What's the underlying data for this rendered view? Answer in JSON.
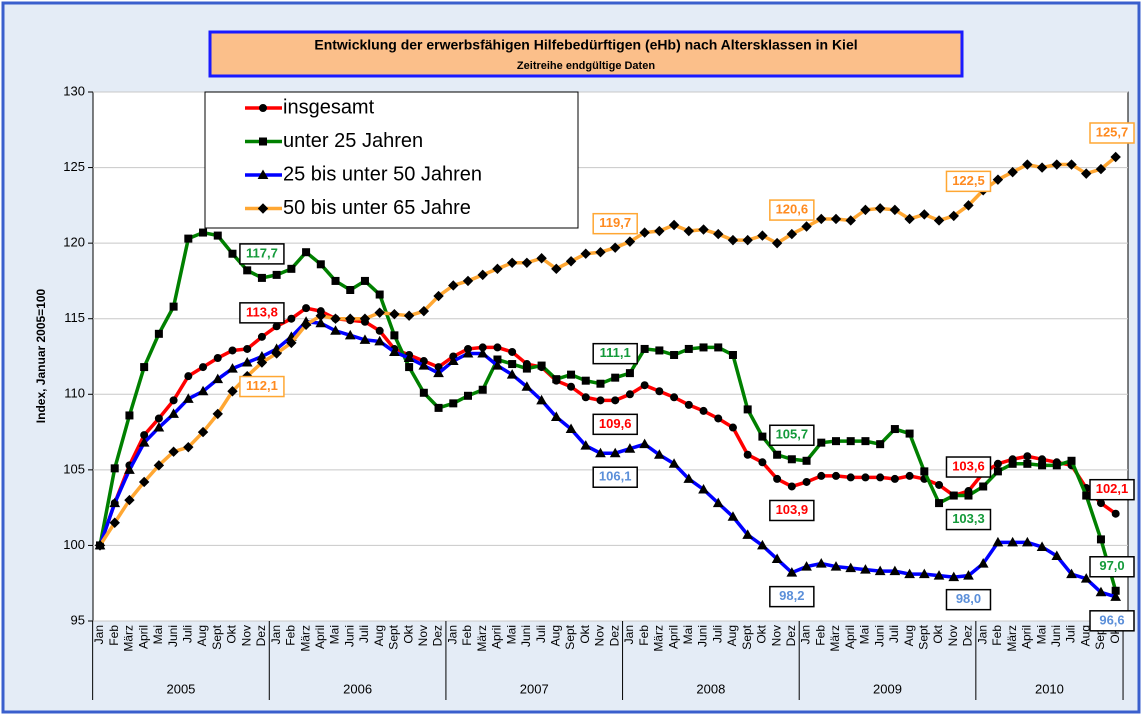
{
  "chart_data": {
    "type": "line",
    "title": "Entwicklung der erwerbsfähigen Hilfebedürftigen (eHb) nach Altersklassen  in Kiel",
    "subtitle": "Zeitreihe endgültige Daten",
    "y_label": "Index, Januar  2005=100",
    "categories": [
      "Jan",
      "Feb",
      "März",
      "April",
      "Mai",
      "Juni",
      "Juli",
      "Aug",
      "Sept",
      "Okt",
      "Nov",
      "Dez",
      "Jan",
      "Feb",
      "März",
      "April",
      "Mai",
      "Juni",
      "Juli",
      "Aug",
      "Sept",
      "Okt",
      "Nov",
      "Dez",
      "Jan",
      "Feb",
      "März",
      "April",
      "Mai",
      "Juni",
      "Juli",
      "Aug",
      "Sept",
      "Okt",
      "Nov",
      "Dez",
      "Jan",
      "Feb",
      "März",
      "April",
      "Mai",
      "Juni",
      "Juli",
      "Aug",
      "Sept",
      "Okt",
      "Nov",
      "Dez",
      "Jan",
      "Feb",
      "März",
      "April",
      "Mai",
      "Juni",
      "Juli",
      "Aug",
      "Sept",
      "Okt",
      "Nov",
      "Dez",
      "Jan",
      "Feb",
      "März",
      "April",
      "Mai",
      "Juni",
      "Juli",
      "Aug",
      "Sept",
      "Okt"
    ],
    "years": [
      {
        "label": "2005",
        "months": 12
      },
      {
        "label": "2006",
        "months": 12
      },
      {
        "label": "2007",
        "months": 12
      },
      {
        "label": "2008",
        "months": 12
      },
      {
        "label": "2009",
        "months": 12
      },
      {
        "label": "2010",
        "months": 10
      }
    ],
    "ylim": [
      95,
      130
    ],
    "yticks": [
      95,
      100,
      105,
      110,
      115,
      120,
      125,
      130
    ],
    "grid": true,
    "legend": "top-left",
    "series": [
      {
        "name": "insgesamt",
        "color": "#ff0000",
        "marker": "circle",
        "values": [
          100,
          102.8,
          105.3,
          107.3,
          108.4,
          109.6,
          111.2,
          111.8,
          112.4,
          112.9,
          113.0,
          113.8,
          114.5,
          115.0,
          115.7,
          115.5,
          115.0,
          114.9,
          114.8,
          114.2,
          113.0,
          112.6,
          112.2,
          111.8,
          112.5,
          113.0,
          113.1,
          113.1,
          112.8,
          112.0,
          111.8,
          110.9,
          110.5,
          109.8,
          109.6,
          109.6,
          110.0,
          110.6,
          110.2,
          109.8,
          109.3,
          108.9,
          108.4,
          107.8,
          106.0,
          105.5,
          104.4,
          103.9,
          104.2,
          104.6,
          104.6,
          104.5,
          104.5,
          104.5,
          104.4,
          104.6,
          104.4,
          104.0,
          103.3,
          103.6,
          104.8,
          105.4,
          105.7,
          105.9,
          105.7,
          105.5,
          105.3,
          103.8,
          102.8,
          102.1
        ],
        "value_labels": [
          null,
          null,
          null,
          null,
          null,
          null,
          null,
          null,
          null,
          null,
          null,
          "113,8",
          null,
          null,
          null,
          null,
          null,
          null,
          null,
          null,
          null,
          null,
          null,
          null,
          null,
          null,
          null,
          null,
          null,
          null,
          null,
          null,
          null,
          null,
          null,
          "109,6",
          null,
          null,
          null,
          null,
          null,
          null,
          null,
          null,
          null,
          null,
          null,
          "103,9",
          null,
          null,
          null,
          null,
          null,
          null,
          null,
          null,
          null,
          null,
          null,
          "103,6",
          null,
          null,
          null,
          null,
          null,
          null,
          null,
          null,
          null,
          "102,1"
        ]
      },
      {
        "name": "unter 25 Jahren",
        "color": "#008000",
        "marker": "square",
        "values": [
          100,
          105.1,
          108.6,
          111.8,
          114.0,
          115.8,
          120.3,
          120.7,
          120.5,
          119.3,
          118.2,
          117.7,
          117.9,
          118.3,
          119.4,
          118.6,
          117.5,
          116.9,
          117.5,
          116.6,
          113.9,
          111.8,
          110.1,
          109.1,
          109.4,
          109.9,
          110.3,
          112.3,
          112.0,
          111.7,
          111.9,
          111.0,
          111.3,
          110.9,
          110.7,
          111.1,
          111.4,
          113.0,
          112.9,
          112.6,
          113.0,
          113.1,
          113.1,
          112.6,
          109.0,
          107.2,
          106.0,
          105.7,
          105.6,
          106.8,
          106.9,
          106.9,
          106.9,
          106.7,
          107.7,
          107.4,
          104.9,
          102.8,
          103.3,
          103.3,
          103.9,
          104.9,
          105.4,
          105.4,
          105.3,
          105.3,
          105.6,
          103.3,
          100.4,
          97.0
        ],
        "value_labels": [
          null,
          null,
          null,
          null,
          null,
          null,
          null,
          null,
          null,
          null,
          null,
          "117,7",
          null,
          null,
          null,
          null,
          null,
          null,
          null,
          null,
          null,
          null,
          null,
          null,
          null,
          null,
          null,
          null,
          null,
          null,
          null,
          null,
          null,
          null,
          null,
          "111,1",
          null,
          null,
          null,
          null,
          null,
          null,
          null,
          null,
          null,
          null,
          null,
          "105,7",
          null,
          null,
          null,
          null,
          null,
          null,
          null,
          null,
          null,
          null,
          null,
          "103,3",
          null,
          null,
          null,
          null,
          null,
          null,
          null,
          null,
          null,
          "97,0"
        ]
      },
      {
        "name": "25 bis unter 50 Jahren",
        "color": "#0000ff",
        "marker": "triangle",
        "values": [
          100,
          102.8,
          105.0,
          106.8,
          107.8,
          108.7,
          109.7,
          110.2,
          111.0,
          111.7,
          112.1,
          112.5,
          113.0,
          113.8,
          114.8,
          114.7,
          114.2,
          113.9,
          113.6,
          113.5,
          112.8,
          112.4,
          111.9,
          111.4,
          112.2,
          112.7,
          112.7,
          111.9,
          111.3,
          110.5,
          109.6,
          108.5,
          107.7,
          106.6,
          106.1,
          106.1,
          106.4,
          106.7,
          106.0,
          105.4,
          104.4,
          103.7,
          102.8,
          101.9,
          100.7,
          100.0,
          99.1,
          98.2,
          98.6,
          98.8,
          98.6,
          98.5,
          98.4,
          98.3,
          98.3,
          98.1,
          98.1,
          98.0,
          97.9,
          98.0,
          98.8,
          100.2,
          100.2,
          100.2,
          99.9,
          99.3,
          98.1,
          97.8,
          96.9,
          96.6
        ],
        "value_labels": [
          null,
          null,
          null,
          null,
          null,
          null,
          null,
          null,
          null,
          null,
          null,
          null,
          null,
          null,
          null,
          null,
          null,
          null,
          null,
          null,
          null,
          null,
          null,
          null,
          null,
          null,
          null,
          null,
          null,
          null,
          null,
          null,
          null,
          null,
          null,
          "106,1",
          null,
          null,
          null,
          null,
          null,
          null,
          null,
          null,
          null,
          null,
          null,
          "98,2",
          null,
          null,
          null,
          null,
          null,
          null,
          null,
          null,
          null,
          null,
          null,
          "98,0",
          null,
          null,
          null,
          null,
          null,
          null,
          null,
          null,
          null,
          "96,6"
        ]
      },
      {
        "name": "50 bis unter 65 Jahre",
        "color": "#ffa733",
        "marker": "diamond",
        "values": [
          100,
          101.5,
          103.0,
          104.2,
          105.3,
          106.2,
          106.5,
          107.5,
          108.7,
          110.2,
          111.2,
          112.1,
          112.7,
          113.4,
          114.6,
          115.2,
          115.0,
          115.0,
          115.0,
          115.4,
          115.3,
          115.2,
          115.5,
          116.5,
          117.2,
          117.5,
          117.9,
          118.3,
          118.7,
          118.7,
          119.0,
          118.3,
          118.8,
          119.3,
          119.4,
          119.7,
          120.1,
          120.7,
          120.8,
          121.2,
          120.8,
          120.9,
          120.6,
          120.2,
          120.2,
          120.5,
          120.0,
          120.6,
          121.1,
          121.6,
          121.6,
          121.5,
          122.2,
          122.3,
          122.2,
          121.6,
          121.9,
          121.5,
          121.8,
          122.5,
          123.5,
          124.2,
          124.7,
          125.2,
          125.0,
          125.2,
          125.2,
          124.6,
          124.9,
          125.7
        ],
        "value_labels": [
          null,
          null,
          null,
          null,
          null,
          null,
          null,
          null,
          null,
          null,
          null,
          "112,1",
          null,
          null,
          null,
          null,
          null,
          null,
          null,
          null,
          null,
          null,
          null,
          null,
          null,
          null,
          null,
          null,
          null,
          null,
          null,
          null,
          null,
          null,
          null,
          "119,7",
          null,
          null,
          null,
          null,
          null,
          null,
          null,
          null,
          null,
          null,
          null,
          "120,6",
          null,
          null,
          null,
          null,
          null,
          null,
          null,
          null,
          null,
          null,
          null,
          "122,5",
          null,
          null,
          null,
          null,
          null,
          null,
          null,
          null,
          null,
          "125,7"
        ]
      }
    ]
  }
}
